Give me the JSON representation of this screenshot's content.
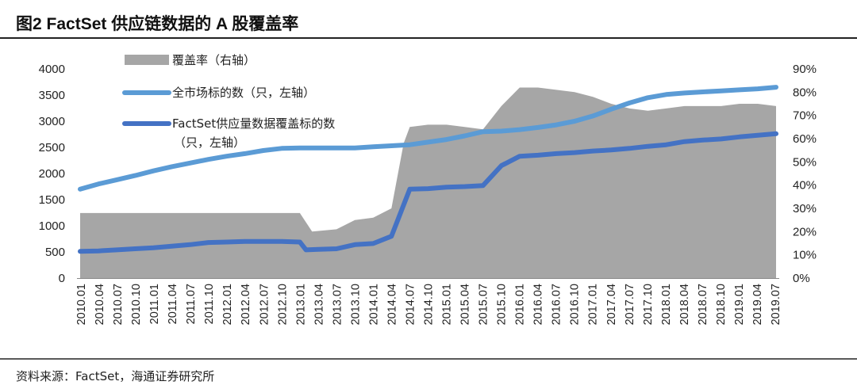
{
  "header": {
    "title": "图2 FactSet 供应链数据的 A 股覆盖率"
  },
  "footer": {
    "source": "资料来源：FactSet，海通证券研究所"
  },
  "colors": {
    "area": "#a6a6a6",
    "market_line": "#5b9bd5",
    "factset_line": "#4472c4",
    "rule": "#222222",
    "text": "#222222"
  },
  "chart_data": {
    "type": "line",
    "x_tick_labels": [
      "2010.01",
      "2010.04",
      "2010.07",
      "2010.10",
      "2011.01",
      "2011.04",
      "2011.07",
      "2011.10",
      "2012.01",
      "2012.04",
      "2012.07",
      "2012.10",
      "2013.01",
      "2013.04",
      "2013.07",
      "2013.10",
      "2014.01",
      "2014.04",
      "2014.07",
      "2014.10",
      "2015.01",
      "2015.04",
      "2015.07",
      "2015.10",
      "2016.01",
      "2016.04",
      "2016.07",
      "2016.10",
      "2017.01",
      "2017.04",
      "2017.07",
      "2017.10",
      "2018.01",
      "2018.04",
      "2018.07",
      "2018.10",
      "2019.01",
      "2019.04",
      "2019.07"
    ],
    "y_left": {
      "ticks": [
        "0",
        "500",
        "1000",
        "1500",
        "2000",
        "2500",
        "3000",
        "3500",
        "4000"
      ],
      "min": 0,
      "max": 4000
    },
    "y_right": {
      "ticks": [
        "0%",
        "10%",
        "20%",
        "30%",
        "40%",
        "50%",
        "60%",
        "70%",
        "80%",
        "90%"
      ],
      "min": 0,
      "max": 0.9
    },
    "legend": [
      {
        "label": "覆盖率（右轴）",
        "kind": "area"
      },
      {
        "label": "全市场标的数（只，左轴）",
        "kind": "line"
      },
      {
        "label": "FactSet供应量数据覆盖标的数",
        "label2": "（只，左轴）",
        "kind": "line"
      }
    ],
    "series": [
      {
        "name": "覆盖率（右轴）",
        "type": "area",
        "axis": "right",
        "x": [
          "2010.01",
          "2010.04",
          "2010.07",
          "2010.10",
          "2011.01",
          "2011.04",
          "2011.07",
          "2011.10",
          "2012.01",
          "2012.04",
          "2012.07",
          "2012.10",
          "2013.01",
          "2013.03",
          "2013.07",
          "2013.10",
          "2014.01",
          "2014.04",
          "2014.06",
          "2014.07",
          "2014.10",
          "2015.01",
          "2015.04",
          "2015.07",
          "2015.10",
          "2016.01",
          "2016.04",
          "2016.07",
          "2016.10",
          "2017.01",
          "2017.04",
          "2017.07",
          "2017.10",
          "2018.01",
          "2018.04",
          "2018.07",
          "2018.10",
          "2019.01",
          "2019.04",
          "2019.07"
        ],
        "values": [
          0.28,
          0.28,
          0.28,
          0.28,
          0.28,
          0.28,
          0.28,
          0.28,
          0.28,
          0.28,
          0.28,
          0.28,
          0.28,
          0.2,
          0.21,
          0.25,
          0.26,
          0.3,
          0.58,
          0.65,
          0.66,
          0.66,
          0.65,
          0.64,
          0.74,
          0.82,
          0.82,
          0.81,
          0.8,
          0.78,
          0.75,
          0.73,
          0.72,
          0.73,
          0.74,
          0.74,
          0.74,
          0.75,
          0.75,
          0.74
        ]
      },
      {
        "name": "全市场标的数（只，左轴）",
        "type": "line",
        "axis": "left",
        "x": [
          "2010.01",
          "2010.04",
          "2010.07",
          "2010.10",
          "2011.01",
          "2011.04",
          "2011.07",
          "2011.10",
          "2012.01",
          "2012.04",
          "2012.07",
          "2012.10",
          "2013.01",
          "2013.04",
          "2013.07",
          "2013.10",
          "2014.01",
          "2014.04",
          "2014.07",
          "2014.10",
          "2015.01",
          "2015.04",
          "2015.07",
          "2015.10",
          "2016.01",
          "2016.04",
          "2016.07",
          "2016.10",
          "2017.01",
          "2017.04",
          "2017.07",
          "2017.10",
          "2018.01",
          "2018.04",
          "2018.07",
          "2018.10",
          "2019.01",
          "2019.04",
          "2019.07"
        ],
        "values": [
          1700,
          1800,
          1880,
          1960,
          2050,
          2130,
          2200,
          2270,
          2330,
          2380,
          2440,
          2480,
          2490,
          2490,
          2490,
          2490,
          2510,
          2530,
          2550,
          2600,
          2650,
          2720,
          2800,
          2810,
          2840,
          2880,
          2930,
          3000,
          3100,
          3230,
          3350,
          3450,
          3510,
          3540,
          3560,
          3580,
          3600,
          3620,
          3650
        ]
      },
      {
        "name": "FactSet供应量数据覆盖标的数（只，左轴）",
        "type": "line",
        "axis": "left",
        "x": [
          "2010.01",
          "2010.04",
          "2010.07",
          "2010.10",
          "2011.01",
          "2011.04",
          "2011.07",
          "2011.10",
          "2012.01",
          "2012.04",
          "2012.07",
          "2012.10",
          "2013.01",
          "2013.02",
          "2013.04",
          "2013.07",
          "2013.10",
          "2014.01",
          "2014.04",
          "2014.07",
          "2014.10",
          "2015.01",
          "2015.04",
          "2015.07",
          "2015.10",
          "2016.01",
          "2016.04",
          "2016.07",
          "2016.10",
          "2017.01",
          "2017.04",
          "2017.07",
          "2017.10",
          "2018.01",
          "2018.04",
          "2018.07",
          "2018.10",
          "2019.01",
          "2019.04",
          "2019.07"
        ],
        "values": [
          510,
          520,
          540,
          560,
          580,
          610,
          640,
          680,
          690,
          700,
          700,
          700,
          690,
          540,
          550,
          560,
          640,
          660,
          800,
          1700,
          1710,
          1740,
          1750,
          1770,
          2150,
          2330,
          2350,
          2380,
          2400,
          2430,
          2450,
          2480,
          2520,
          2550,
          2610,
          2640,
          2660,
          2700,
          2730,
          2760
        ]
      }
    ]
  }
}
